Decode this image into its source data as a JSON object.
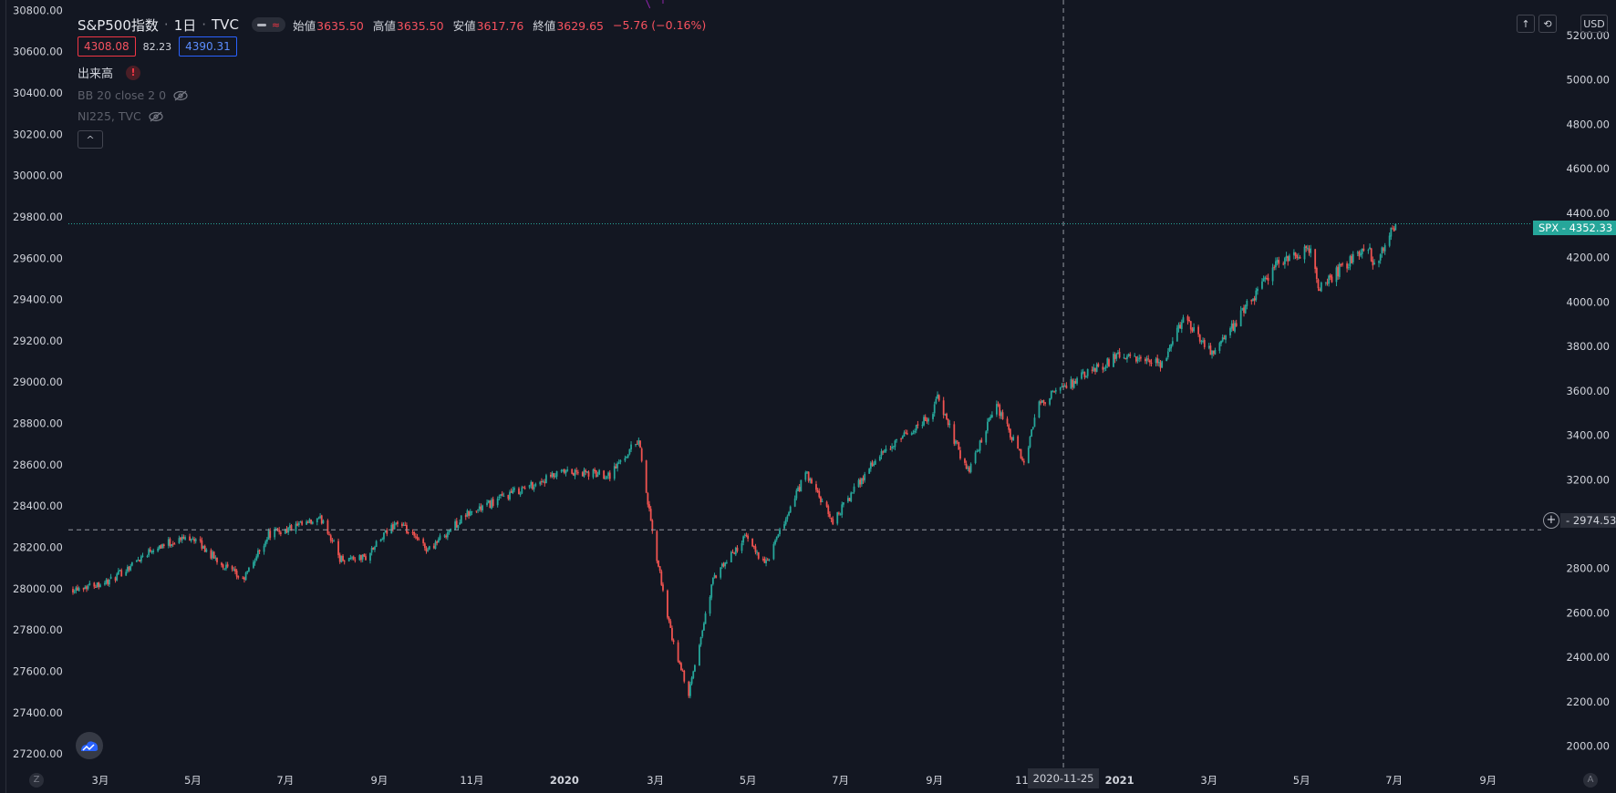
{
  "header": {
    "symbol": "S&P500指数",
    "interval": "1日",
    "exchange": "TVC",
    "ohlc": {
      "open_label": "始値",
      "open": "3635.50",
      "high_label": "高値",
      "high": "3635.50",
      "low_label": "安値",
      "low": "3617.76",
      "close_label": "終値",
      "close": "3629.65",
      "change": "−5.76 (−0.16%)"
    },
    "quote": {
      "left": "4308.08",
      "mid": "82.23",
      "right": "4390.31"
    }
  },
  "indicators": {
    "volume": "出来高",
    "bb": "BB 20 close 2 0",
    "compare": "NI225, TVC"
  },
  "toolbar": {
    "currency": "USD"
  },
  "crosshair": {
    "price": "2974.53",
    "date": "2020-11-25"
  },
  "last_price": {
    "symbol": "SPX",
    "value": "4352.33"
  },
  "colors": {
    "background": "#131722",
    "up": "#26a69a",
    "down": "#ef5350",
    "crosshair": "#9598a1",
    "compare": "#8e24aa"
  },
  "chart_data": {
    "type": "candlestick",
    "x_range": [
      "2019-02-08",
      "2021-09-30"
    ],
    "y_right": {
      "range": [
        1900,
        5360
      ],
      "ticks": [
        "2000.00",
        "2200.00",
        "2400.00",
        "2600.00",
        "2800.00",
        "3000.00",
        "3200.00",
        "3400.00",
        "3600.00",
        "3800.00",
        "4000.00",
        "4200.00",
        "4400.00",
        "4600.00",
        "4800.00",
        "5000.00",
        "5200.00"
      ]
    },
    "y_left": {
      "range": [
        27130,
        30850
      ],
      "ticks": [
        "27200.00",
        "27400.00",
        "27600.00",
        "27800.00",
        "28000.00",
        "28200.00",
        "28400.00",
        "28600.00",
        "28800.00",
        "29000.00",
        "29200.00",
        "29400.00",
        "29600.00",
        "29800.00",
        "30000.00",
        "30200.00",
        "30400.00",
        "30600.00",
        "30800.00"
      ]
    },
    "x_ticks": [
      {
        "date": "2019-03-01",
        "label": "3月"
      },
      {
        "date": "2019-05-01",
        "label": "5月"
      },
      {
        "date": "2019-07-01",
        "label": "7月"
      },
      {
        "date": "2019-09-01",
        "label": "9月"
      },
      {
        "date": "2019-11-01",
        "label": "11月"
      },
      {
        "date": "2020-01-01",
        "label": "2020",
        "bold": true
      },
      {
        "date": "2020-03-01",
        "label": "3月"
      },
      {
        "date": "2020-05-01",
        "label": "5月"
      },
      {
        "date": "2020-07-01",
        "label": "7月"
      },
      {
        "date": "2020-09-01",
        "label": "9月"
      },
      {
        "date": "2020-11-01",
        "label": "11月"
      },
      {
        "date": "2021-01-01",
        "label": "2021",
        "bold": true
      },
      {
        "date": "2021-03-01",
        "label": "3月"
      },
      {
        "date": "2021-05-01",
        "label": "5月"
      },
      {
        "date": "2021-07-01",
        "label": "7月"
      },
      {
        "date": "2021-09-01",
        "label": "9月"
      }
    ],
    "series": [
      {
        "symbol": "SPX",
        "close_path": [
          [
            "2019-02-11",
            2710
          ],
          [
            "2019-03-08",
            2745
          ],
          [
            "2019-04-05",
            2895
          ],
          [
            "2019-04-30",
            2945
          ],
          [
            "2019-05-15",
            2850
          ],
          [
            "2019-06-03",
            2745
          ],
          [
            "2019-06-20",
            2955
          ],
          [
            "2019-07-26",
            3020
          ],
          [
            "2019-08-06",
            2845
          ],
          [
            "2019-08-23",
            2850
          ],
          [
            "2019-09-12",
            3010
          ],
          [
            "2019-10-03",
            2885
          ],
          [
            "2019-10-28",
            3040
          ],
          [
            "2019-11-29",
            3145
          ],
          [
            "2019-12-31",
            3230
          ],
          [
            "2020-01-31",
            3225
          ],
          [
            "2020-02-19",
            3385
          ],
          [
            "2020-02-28",
            2955
          ],
          [
            "2020-03-12",
            2480
          ],
          [
            "2020-03-23",
            2235
          ],
          [
            "2020-04-08",
            2750
          ],
          [
            "2020-04-29",
            2940
          ],
          [
            "2020-05-13",
            2820
          ],
          [
            "2020-06-08",
            3230
          ],
          [
            "2020-06-26",
            3010
          ],
          [
            "2020-07-22",
            3275
          ],
          [
            "2020-08-31",
            3500
          ],
          [
            "2020-09-02",
            3580
          ],
          [
            "2020-09-23",
            3235
          ],
          [
            "2020-10-12",
            3535
          ],
          [
            "2020-10-30",
            3270
          ],
          [
            "2020-11-09",
            3550
          ],
          [
            "2020-12-31",
            3756
          ],
          [
            "2021-01-29",
            3714
          ],
          [
            "2021-02-12",
            3934
          ],
          [
            "2021-03-04",
            3768
          ],
          [
            "2021-04-16",
            4185
          ],
          [
            "2021-05-07",
            4232
          ],
          [
            "2021-05-12",
            4063
          ],
          [
            "2021-06-14",
            4255
          ],
          [
            "2021-06-18",
            4166
          ],
          [
            "2021-07-02",
            4352
          ]
        ]
      }
    ]
  }
}
